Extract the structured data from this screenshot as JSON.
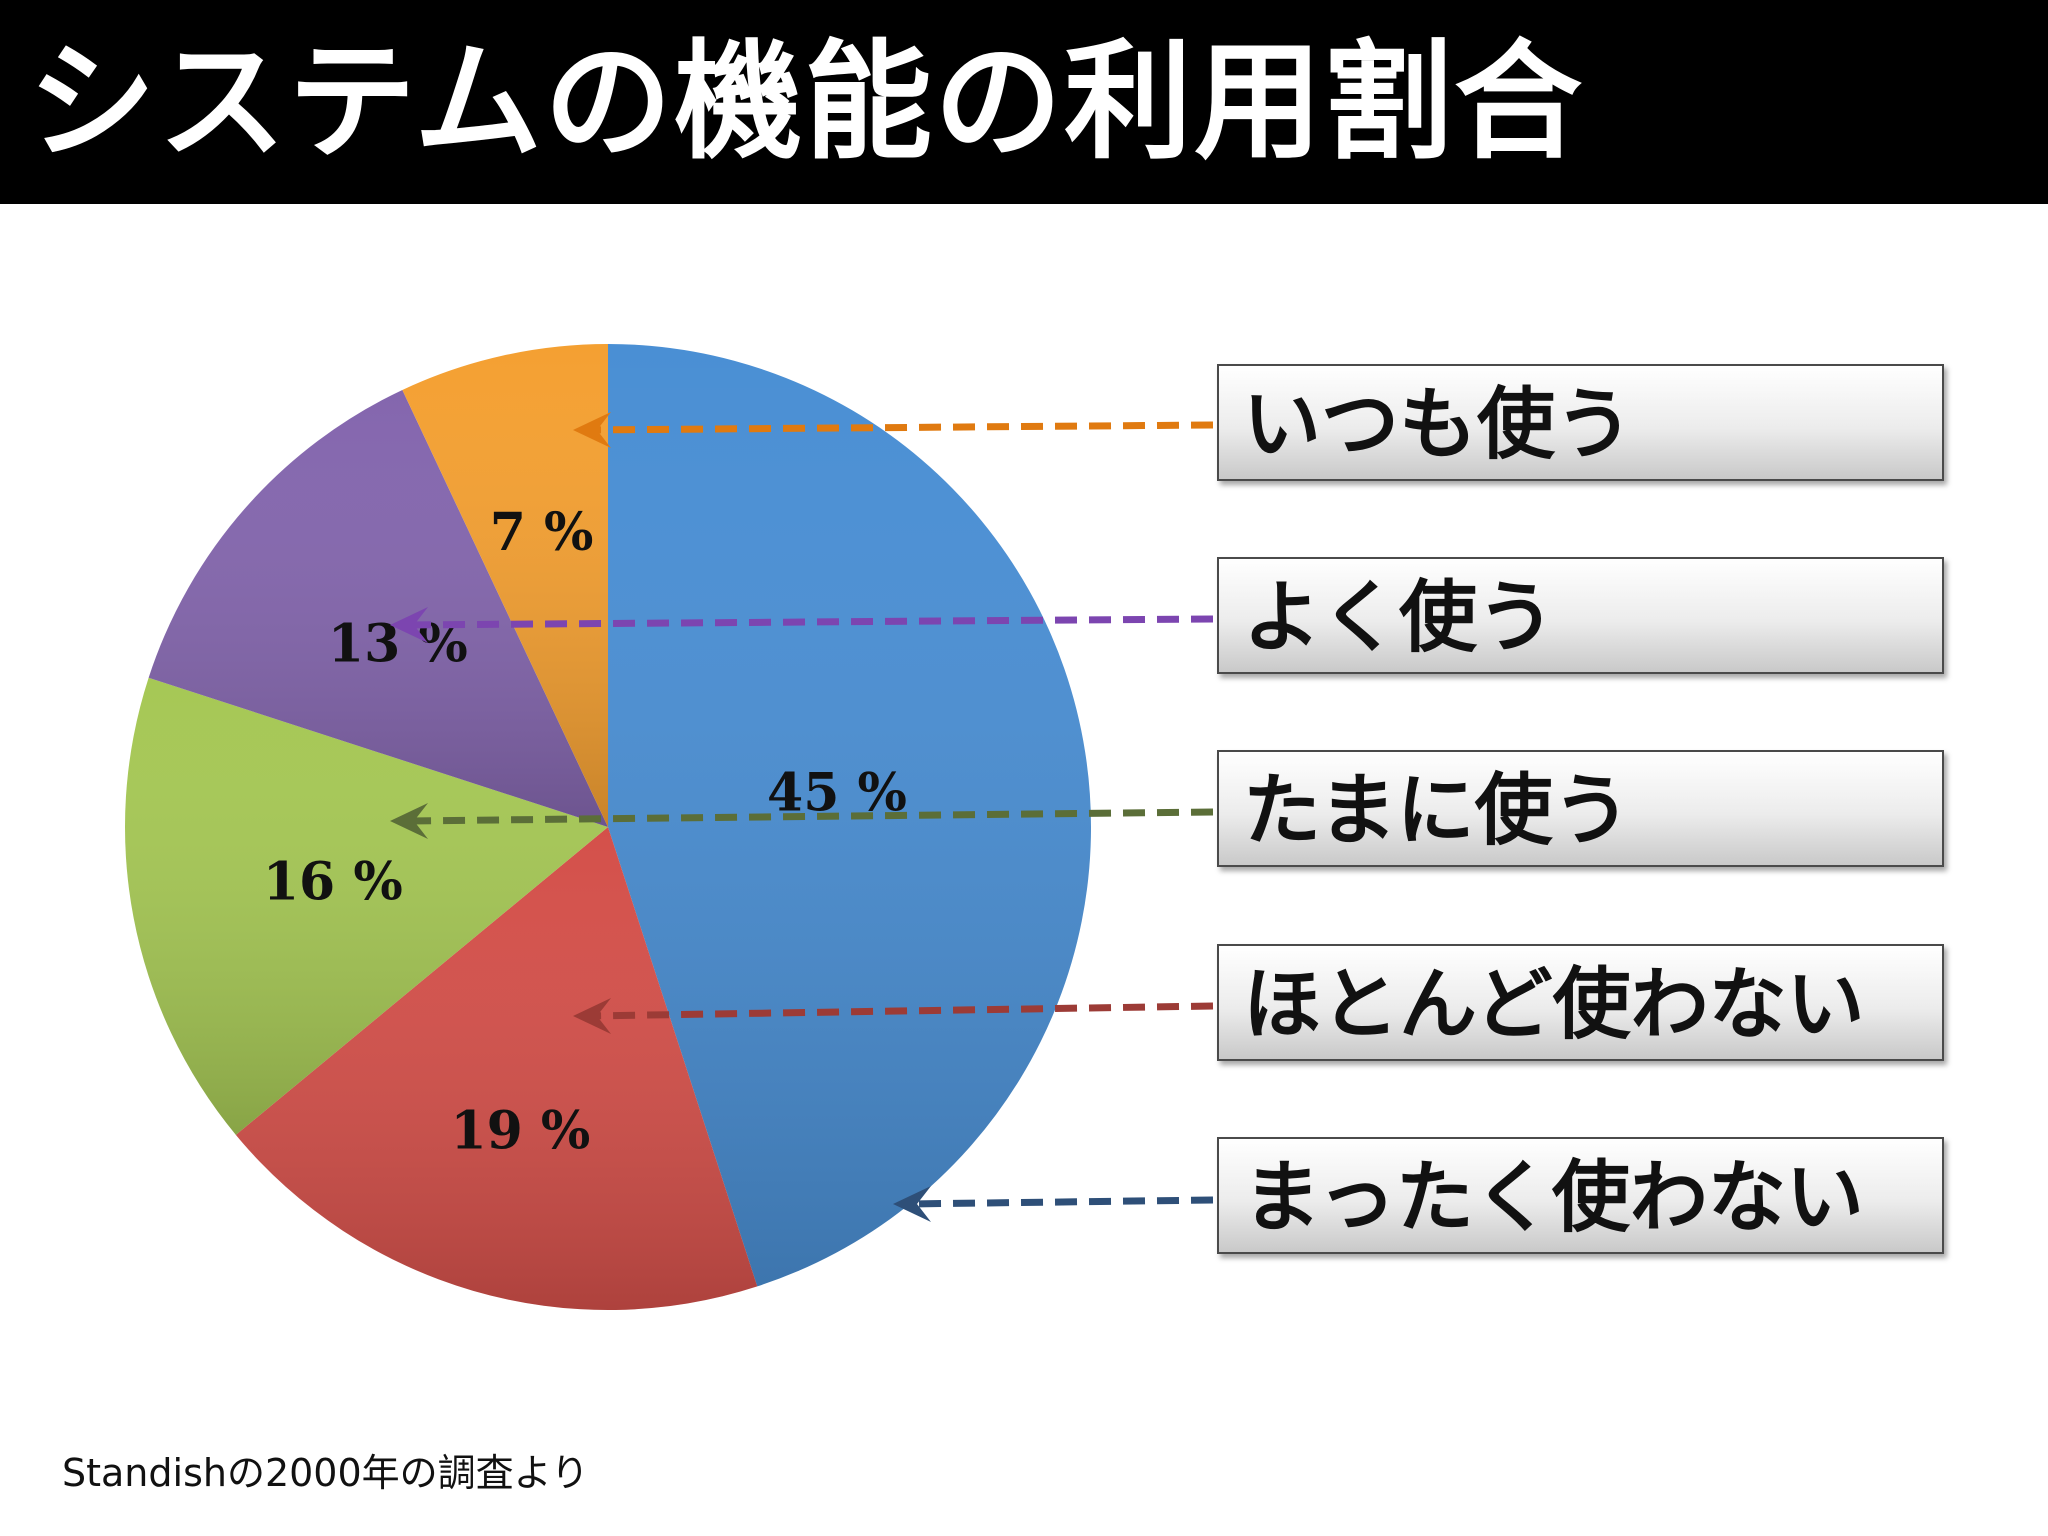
{
  "title": "システムの機能の利用割合",
  "source_note": "Standishの2000年の調査より",
  "chart_data": {
    "type": "pie",
    "unit_suffix": " %",
    "start_angle_deg": 0,
    "direction": "clockwise",
    "slices": [
      {
        "label": "まったく使わない",
        "value": 45,
        "color": "#4a8fd4",
        "arrow_color": "#2e4f78"
      },
      {
        "label": "ほとんど使わない",
        "value": 19,
        "color": "#d4504a",
        "arrow_color": "#9c3b36"
      },
      {
        "label": "たまに使う",
        "value": 16,
        "color": "#a6c855",
        "arrow_color": "#5b6e38"
      },
      {
        "label": "よく使う",
        "value": 13,
        "color": "#8466ae",
        "arrow_color": "#7c45b0"
      },
      {
        "label": "いつも使う",
        "value": 7,
        "color": "#f4a032",
        "arrow_color": "#e07a10"
      }
    ]
  },
  "legend": {
    "items": [
      "いつも使う",
      "よく使う",
      "たまに使う",
      "ほとんど使わない",
      "まったく使わない"
    ]
  }
}
